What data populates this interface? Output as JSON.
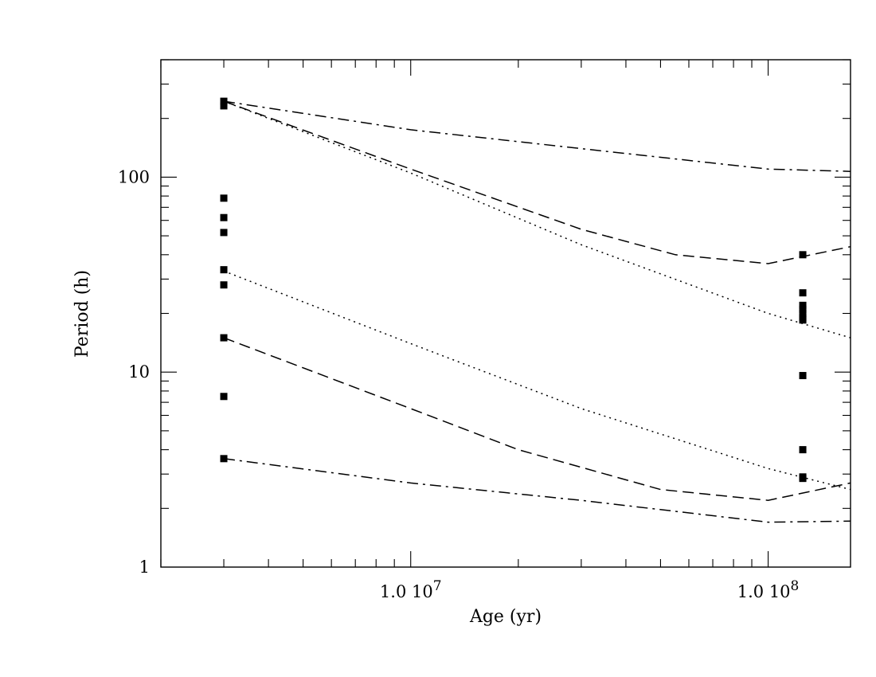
{
  "chart_data": {
    "type": "scatter",
    "title": "",
    "xlabel": "Age (yr)",
    "ylabel": "Period (h)",
    "xscale": "log",
    "yscale": "log",
    "xlim": [
      2000000,
      170000000
    ],
    "ylim": [
      1,
      400
    ],
    "grid": false,
    "legend": "none",
    "x_tick_labels": [
      {
        "value": 10000000,
        "mantissa": "1.0",
        "base": "10",
        "exp": "7"
      },
      {
        "value": 100000000,
        "mantissa": "1.0",
        "base": "10",
        "exp": "8"
      }
    ],
    "y_tick_labels": [
      {
        "value": 1,
        "label": "1"
      },
      {
        "value": 10,
        "label": "10"
      },
      {
        "value": 100,
        "label": "100"
      }
    ],
    "series": [
      {
        "style": "dashdot",
        "x": [
          3000000,
          10000000,
          30000000,
          100000000,
          170000000
        ],
        "y": [
          245,
          175,
          140,
          110,
          107
        ]
      },
      {
        "style": "dashed",
        "x": [
          3000000,
          10000000,
          30000000,
          55000000,
          100000000,
          170000000
        ],
        "y": [
          245,
          110,
          54,
          40,
          36,
          44
        ]
      },
      {
        "style": "dotted",
        "x": [
          3000000,
          10000000,
          30000000,
          100000000,
          170000000
        ],
        "y": [
          245,
          105,
          45,
          20,
          15
        ]
      },
      {
        "style": "dotted",
        "x": [
          3000000,
          10000000,
          30000000,
          100000000,
          170000000
        ],
        "y": [
          33,
          14,
          6.5,
          3.2,
          2.5
        ]
      },
      {
        "style": "dashed",
        "x": [
          3000000,
          10000000,
          20000000,
          50000000,
          100000000,
          170000000
        ],
        "y": [
          15,
          6.5,
          4,
          2.5,
          2.2,
          2.7
        ]
      },
      {
        "style": "dashdot",
        "x": [
          3000000,
          10000000,
          30000000,
          100000000,
          170000000
        ],
        "y": [
          3.6,
          2.7,
          2.2,
          1.7,
          1.72
        ]
      },
      {
        "style": "points",
        "x": [
          3000000,
          3000000,
          3000000,
          3000000,
          3000000,
          3000000,
          3000000,
          3000000,
          3000000,
          3000000
        ],
        "y": [
          245,
          232,
          78,
          62,
          52,
          33.5,
          28,
          15,
          7.5,
          3.6
        ]
      },
      {
        "style": "points",
        "x": [
          125000000,
          125000000,
          125000000,
          125000000,
          125000000,
          125000000,
          125000000,
          125000000,
          125000000,
          125000000,
          125000000
        ],
        "y": [
          40,
          25.5,
          22,
          21,
          20,
          19,
          18.5,
          9.6,
          4.0,
          2.9,
          2.85
        ]
      }
    ]
  }
}
